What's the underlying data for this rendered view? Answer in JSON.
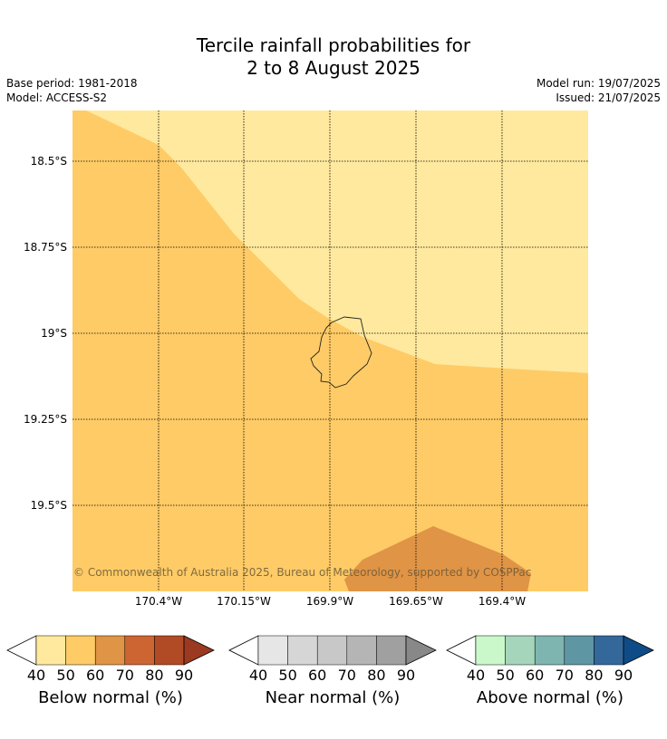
{
  "header": {
    "title_line1": "Tercile rainfall probabilities for",
    "title_line2": "2 to 8 August 2025",
    "base_period": "Base period: 1981-2018",
    "model": "Model: ACCESS-S2",
    "model_run": "Model run: 19/07/2025",
    "issued": "Issued: 21/07/2025"
  },
  "map": {
    "latitude_labels": [
      "18.5°S",
      "18.75°S",
      "19°S",
      "19.25°S",
      "19.5°S"
    ],
    "longitude_labels": [
      "170.4°W",
      "170.15°W",
      "169.9°W",
      "169.65°W",
      "169.4°W"
    ],
    "copyright": "© Commonwealth of Australia 2025, Bureau of Meteorology, supported by COSPPac",
    "colors": {
      "below_40_50": "#ffe99e",
      "below_50_60": "#fecb66",
      "below_60_70": "#e09445"
    }
  },
  "legends": [
    {
      "caption": "Below normal (%)",
      "ticks": [
        "40",
        "50",
        "60",
        "70",
        "80",
        "90"
      ],
      "colors": [
        "#ffe99e",
        "#fecb66",
        "#e09445",
        "#cd6532",
        "#b14b25",
        "#9b3a20"
      ]
    },
    {
      "caption": "Near normal (%)",
      "ticks": [
        "40",
        "50",
        "60",
        "70",
        "80",
        "90"
      ],
      "colors": [
        "#e6e6e6",
        "#d6d6d6",
        "#c8c8c8",
        "#b5b5b5",
        "#a0a0a0",
        "#888888"
      ]
    },
    {
      "caption": "Above normal (%)",
      "ticks": [
        "40",
        "50",
        "60",
        "70",
        "80",
        "90"
      ],
      "colors": [
        "#caf8cb",
        "#a5d6bc",
        "#7fb5b0",
        "#5e96a4",
        "#34679a",
        "#0f4c87"
      ]
    }
  ]
}
